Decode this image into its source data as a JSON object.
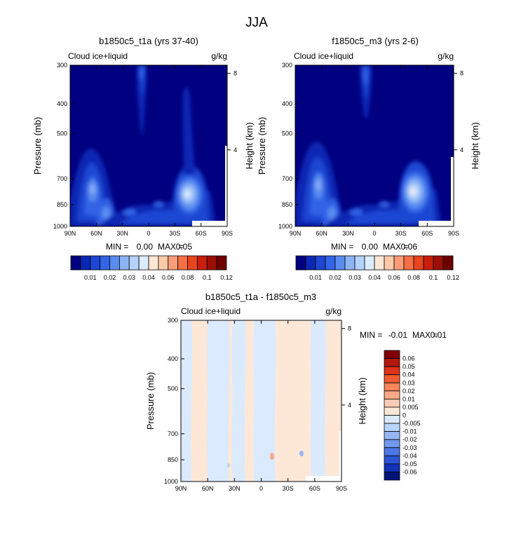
{
  "page": {
    "title": "JJA"
  },
  "chart_data": [
    {
      "type": "heatmap",
      "title": "b1850c5_t1a (yrs 37-40)",
      "left_label": "Cloud ice+liquid",
      "units": "g/kg",
      "ylabel": "Pressure (mb)",
      "ylabel_right": "Height (km)",
      "xticks": [
        "90N",
        "60N",
        "30N",
        "0",
        "30S",
        "60S",
        "90S"
      ],
      "xvalues": [
        90,
        60,
        30,
        0,
        -30,
        -60,
        -90
      ],
      "yticks": [
        "300",
        "400",
        "500",
        "700",
        "850",
        "1000"
      ],
      "yvalues": [
        300,
        400,
        500,
        700,
        850,
        1000
      ],
      "yticks_right": [
        "8",
        "4"
      ],
      "yvalues_right": [
        8,
        4
      ],
      "stats": {
        "min_label": "MIN =",
        "min": "0.00",
        "max_label": "MAX =",
        "max": "0.05"
      },
      "peaks": [
        {
          "lat": 75,
          "p": 820,
          "value": 0.04
        },
        {
          "lat": 50,
          "p": 940,
          "value": 0.03
        },
        {
          "lat": 7,
          "p": 380,
          "value": 0.02
        },
        {
          "lat": -45,
          "p": 850,
          "value": 0.05
        },
        {
          "lat": -42,
          "p": 600,
          "value": 0.01
        }
      ],
      "colorbar": {
        "labels": [
          "0.01",
          "0.02",
          "0.03",
          "0.04",
          "0.06",
          "0.08",
          "0.1",
          "0.12"
        ],
        "colors": [
          "#000080",
          "#0a28b4",
          "#1e46d2",
          "#3264e6",
          "#5a8cf0",
          "#8cb4f5",
          "#b4d2fa",
          "#dcecff",
          "#fde6d4",
          "#fccaa8",
          "#fa9c78",
          "#f76e46",
          "#e6461e",
          "#c81e0a",
          "#9b0f05",
          "#6e0000"
        ]
      }
    },
    {
      "type": "heatmap",
      "title": "f1850c5_m3 (yrs 2-6)",
      "left_label": "Cloud ice+liquid",
      "units": "g/kg",
      "ylabel": "Pressure (mb)",
      "ylabel_right": "Height (km)",
      "xticks": [
        "90N",
        "60N",
        "30N",
        "0",
        "30S",
        "60S",
        "90S"
      ],
      "xvalues": [
        90,
        60,
        30,
        0,
        -30,
        -60,
        -90
      ],
      "yticks": [
        "300",
        "400",
        "500",
        "700",
        "850",
        "1000"
      ],
      "yvalues": [
        300,
        400,
        500,
        700,
        850,
        1000
      ],
      "yticks_right": [
        "8",
        "4"
      ],
      "yvalues_right": [
        8,
        4
      ],
      "stats": {
        "min_label": "MIN =",
        "min": "0.00",
        "max_label": "MAX =",
        "max": "0.06"
      },
      "peaks": [
        {
          "lat": 75,
          "p": 800,
          "value": 0.04
        },
        {
          "lat": 50,
          "p": 940,
          "value": 0.03
        },
        {
          "lat": 10,
          "p": 400,
          "value": 0.02
        },
        {
          "lat": -45,
          "p": 840,
          "value": 0.06
        }
      ],
      "colorbar": {
        "labels": [
          "0.01",
          "0.02",
          "0.03",
          "0.04",
          "0.06",
          "0.08",
          "0.1",
          "0.12"
        ],
        "colors": [
          "#000080",
          "#0a28b4",
          "#1e46d2",
          "#3264e6",
          "#5a8cf0",
          "#8cb4f5",
          "#b4d2fa",
          "#dcecff",
          "#fde6d4",
          "#fccaa8",
          "#fa9c78",
          "#f76e46",
          "#e6461e",
          "#c81e0a",
          "#9b0f05",
          "#6e0000"
        ]
      }
    },
    {
      "type": "heatmap",
      "title": "b1850c5_t1a - f1850c5_m3",
      "left_label": "Cloud ice+liquid",
      "units": "g/kg",
      "ylabel": "Pressure (mb)",
      "ylabel_right": "Height (km)",
      "xticks": [
        "90N",
        "60N",
        "30N",
        "0",
        "30S",
        "60S",
        "90S"
      ],
      "xvalues": [
        90,
        60,
        30,
        0,
        -30,
        -60,
        -90
      ],
      "yticks": [
        "300",
        "400",
        "500",
        "700",
        "850",
        "1000"
      ],
      "yvalues": [
        300,
        400,
        500,
        700,
        850,
        1000
      ],
      "yticks_right": [
        "8",
        "4"
      ],
      "yvalues_right": [
        8,
        4
      ],
      "stats": {
        "min_label": "MIN =",
        "min": "-0.01",
        "max_label": "MAX =",
        "max": "0.01"
      },
      "bands": [
        {
          "lat_from": 90,
          "lat_to": 78,
          "value": -0.005
        },
        {
          "lat_from": 78,
          "lat_to": 60,
          "value": 0.005
        },
        {
          "lat_from": 60,
          "lat_to": 36,
          "value": -0.005
        },
        {
          "lat_from": 36,
          "lat_to": 32,
          "value": 0.005
        },
        {
          "lat_from": 32,
          "lat_to": 18,
          "value": -0.005
        },
        {
          "lat_from": 18,
          "lat_to": 8,
          "value": 0.005
        },
        {
          "lat_from": 8,
          "lat_to": -16,
          "value": -0.005
        },
        {
          "lat_from": -16,
          "lat_to": -56,
          "value": 0.005
        },
        {
          "lat_from": -56,
          "lat_to": -72,
          "value": -0.005
        },
        {
          "lat_from": -72,
          "lat_to": -90,
          "value": 0.005
        }
      ],
      "colorbar": {
        "labels": [
          "0.06",
          "0.05",
          "0.04",
          "0.03",
          "0.02",
          "0.01",
          "0.005",
          "0",
          "-0.005",
          "-0.01",
          "-0.02",
          "-0.03",
          "-0.04",
          "-0.05",
          "-0.06"
        ],
        "colors": [
          "#800000",
          "#b2180b",
          "#dc3218",
          "#f05a32",
          "#f7845a",
          "#faa888",
          "#fcccb4",
          "#fde8d8",
          "#dbeaff",
          "#b9d4fb",
          "#96b7f5",
          "#7098ee",
          "#4c76e6",
          "#2c54d6",
          "#1232b8",
          "#001478"
        ]
      }
    }
  ]
}
